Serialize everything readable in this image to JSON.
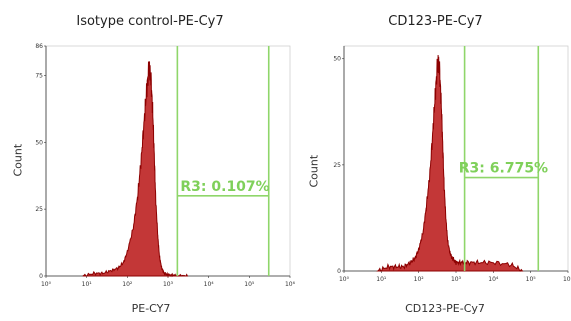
{
  "chart_data": [
    {
      "type": "area",
      "title": "Isotype control-PE-Cy7",
      "xlabel": "PE-CY7",
      "ylabel": "Count",
      "xscale": "log",
      "xlim": [
        1,
        1000000
      ],
      "ylim": [
        0,
        86
      ],
      "x_tick_labels": [
        "10⁰",
        "10¹",
        "10²",
        "10³",
        "10⁴",
        "10⁵",
        "10⁶"
      ],
      "x_ticks": [
        1,
        10,
        100,
        1000,
        10000,
        100000,
        1000000
      ],
      "y_ticks": [
        0,
        25,
        50,
        75,
        86
      ],
      "y_tick_labels": [
        "0",
        "25",
        "50",
        "75",
        "86"
      ],
      "series": [
        {
          "x": [
            8,
            15,
            25,
            40,
            60,
            80,
            100,
            140,
            180,
            220,
            260,
            300,
            340,
            380,
            420,
            460,
            500,
            560,
            620,
            700,
            800,
            1000,
            1400,
            2000,
            3000
          ],
          "values": [
            0,
            1,
            1,
            2,
            3,
            5,
            9,
            18,
            30,
            44,
            58,
            70,
            78,
            74,
            62,
            45,
            28,
            15,
            7,
            3,
            1,
            0.5,
            0.3,
            0.1,
            0
          ]
        }
      ],
      "gate": {
        "name": "R3",
        "label": "R3: 0.107%",
        "x_range": [
          1700,
          300000
        ],
        "level": 30
      }
    },
    {
      "type": "area",
      "title": "CD123-PE-Cy7",
      "xlabel": "CD123-PE-Cy7",
      "ylabel": "Count",
      "xscale": "log",
      "xlim": [
        1,
        1000000
      ],
      "ylim": [
        0,
        53
      ],
      "x_tick_labels": [
        "10⁰",
        "10¹",
        "10²",
        "10³",
        "10⁴",
        "10⁵",
        "10⁶"
      ],
      "x_ticks": [
        1,
        10,
        100,
        1000,
        10000,
        100000,
        1000000
      ],
      "y_ticks": [
        0,
        25,
        50
      ],
      "y_tick_labels": [
        "0",
        "25",
        "50"
      ],
      "series": [
        {
          "x": [
            8,
            15,
            25,
            40,
            60,
            80,
            100,
            130,
            160,
            200,
            240,
            280,
            320,
            360,
            400,
            440,
            480,
            540,
            600,
            700,
            800,
            1000,
            1400,
            2000,
            4000,
            10000,
            30000,
            60000
          ],
          "values": [
            0,
            1,
            1,
            1,
            2,
            3,
            5,
            9,
            15,
            23,
            33,
            42,
            49,
            48,
            40,
            30,
            20,
            12,
            7,
            4,
            3,
            2,
            2,
            2,
            2,
            2,
            1.5,
            0
          ]
        }
      ],
      "gate": {
        "name": "R3",
        "label": "R3: 6.775%",
        "x_range": [
          1700,
          160000
        ],
        "level": 22
      }
    }
  ]
}
